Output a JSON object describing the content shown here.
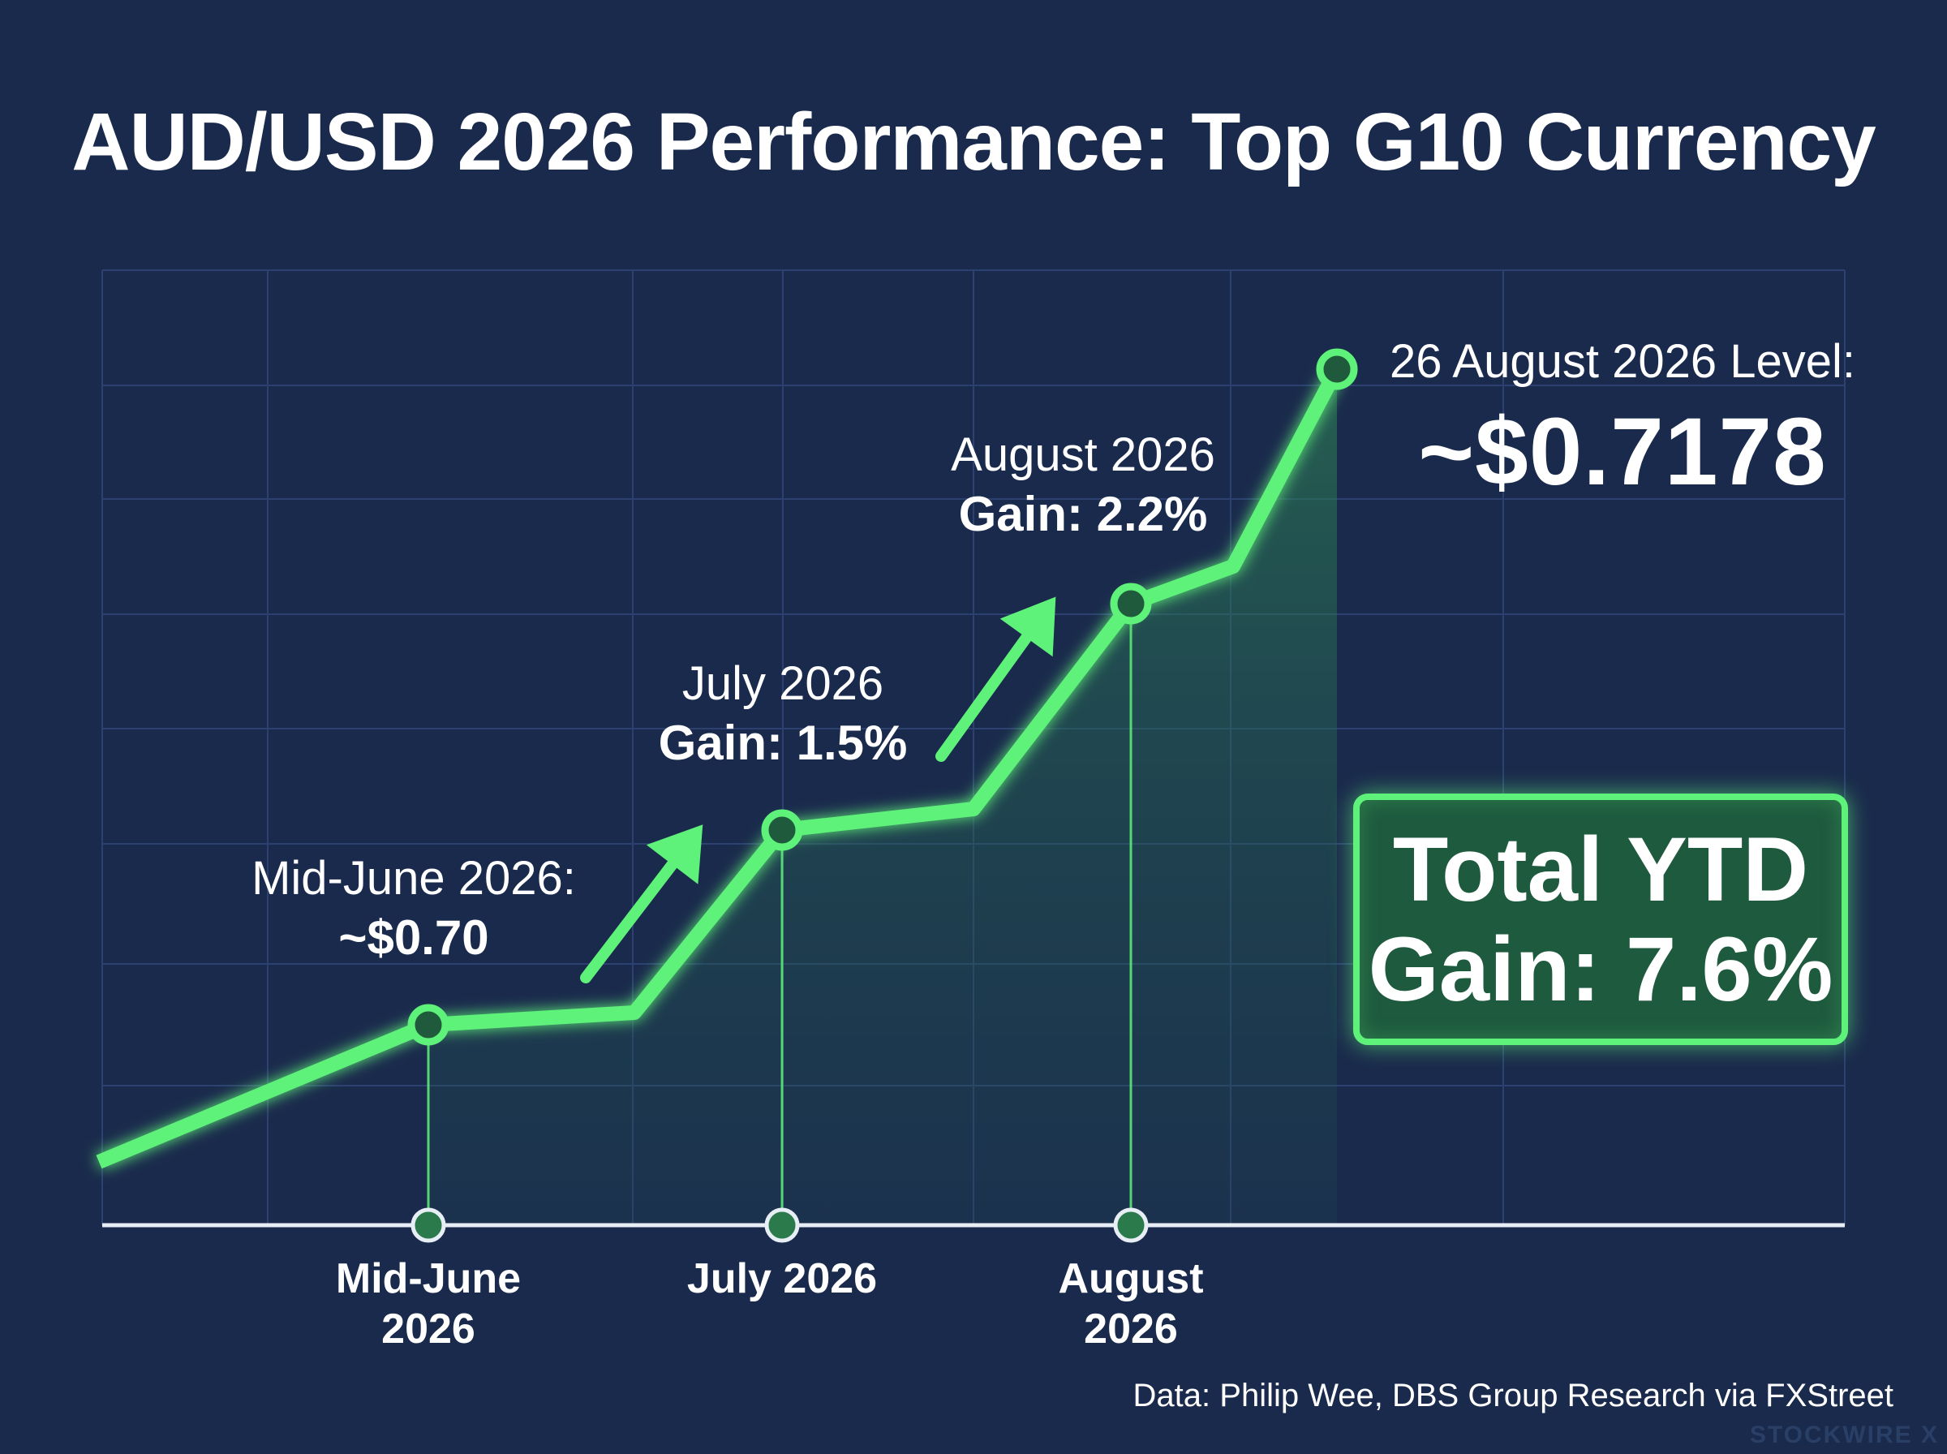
{
  "title": "AUD/USD 2026 Performance: Top G10 Currency",
  "chart_data": {
    "type": "line",
    "title": "AUD/USD 2026 Performance: Top G10 Currency",
    "categories": [
      "Mid-June\n2026",
      "July 2026",
      "August\n2026"
    ],
    "series": [
      {
        "points": [
          {
            "label": "Mid-June 2026",
            "value": 0.7
          },
          {
            "label": "July 2026",
            "gain": "1.5%"
          },
          {
            "label": "August 2026",
            "gain": "2.2%"
          },
          {
            "label": "26 August 2026",
            "value": 0.7178
          }
        ]
      }
    ],
    "x_tick_labels": [
      "Mid-June\n2026",
      "July 2026",
      "August\n2026"
    ],
    "grid": true,
    "colors": {
      "line": "#5ff27a",
      "background": "#1a2a4c",
      "grid": "#2c4170"
    }
  },
  "annotations": {
    "mid_june": {
      "line1": "Mid-June 2026:",
      "line2": "~$0.70"
    },
    "july": {
      "line1": "July 2026",
      "line2": "Gain: 1.5%"
    },
    "august": {
      "line1": "August 2026",
      "line2": "Gain: 2.2%"
    },
    "final": {
      "line1": "26 August 2026 Level:",
      "line2": "~$0.7178"
    }
  },
  "ytd_box": {
    "line1": "Total YTD",
    "line2": "Gain: 7.6%"
  },
  "x_ticks": {
    "mid_june": {
      "line1": "Mid-June",
      "line2": "2026"
    },
    "july": {
      "line1": "July 2026"
    },
    "august": {
      "line1": "August",
      "line2": "2026"
    }
  },
  "source": "Data: Philip Wee, DBS Group Research via FXStreet",
  "watermark": "STOCKWIRE X"
}
